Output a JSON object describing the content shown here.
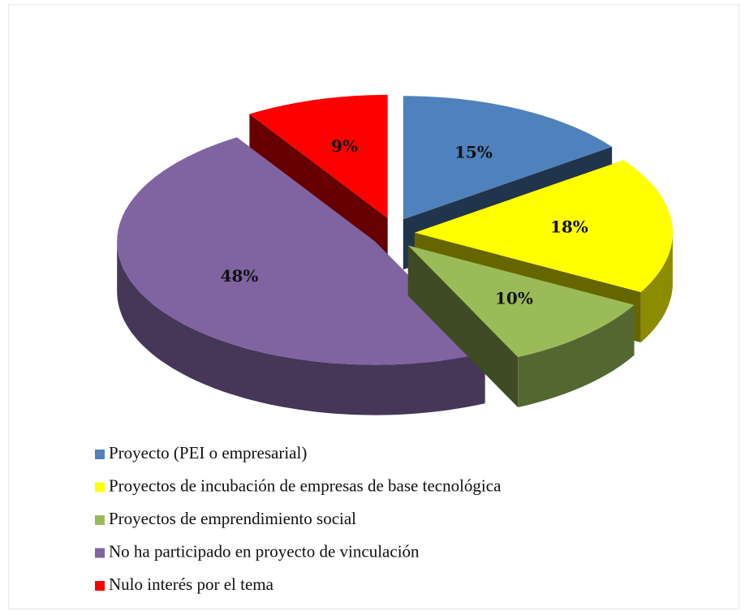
{
  "chart_data": {
    "type": "pie",
    "categories": [
      "Proyecto (PEI o empresarial)",
      "Proyectos de incubación de empresas de base tecnológica",
      "Proyectos de emprendimiento social",
      "No ha participado en proyecto de vinculación",
      "Nulo interés por el tema"
    ],
    "values": [
      15,
      18,
      10,
      48,
      9
    ],
    "value_labels": [
      "15%",
      "18%",
      "10%",
      "48%",
      "9%"
    ],
    "colors": [
      "#4f81bd",
      "#ffff00",
      "#9bbb59",
      "#8064a2",
      "#ff0000"
    ],
    "legend": "bottom"
  }
}
